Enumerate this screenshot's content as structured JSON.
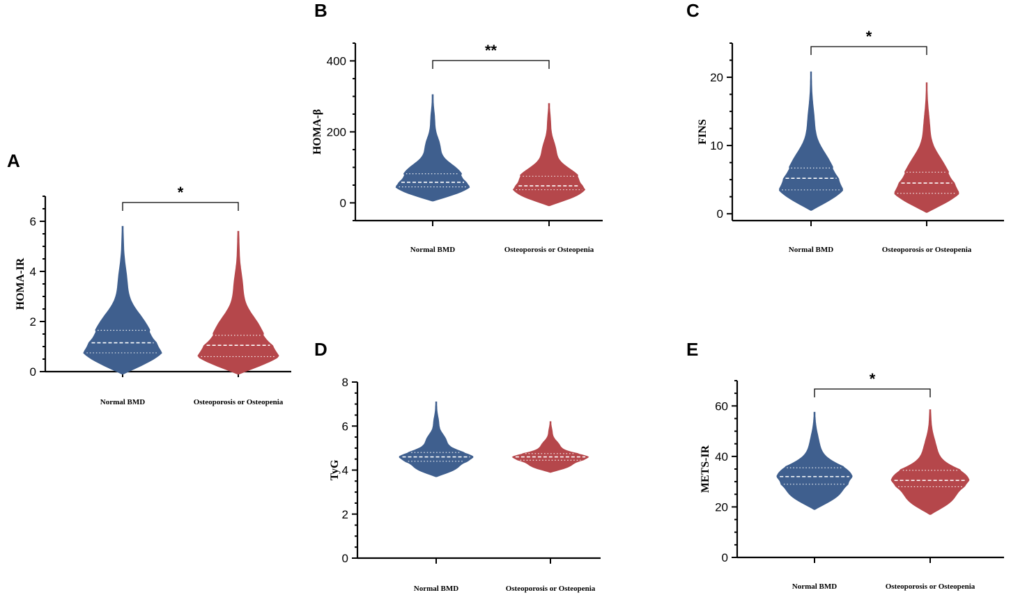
{
  "chart_data": [
    {
      "panel": "A",
      "type": "violin",
      "ylabel": "HOMA-IR",
      "ylim": [
        0,
        7
      ],
      "yticks": [
        0,
        2,
        4,
        6
      ],
      "categories": [
        "Normal BMD",
        "Osteoporosis or Osteopenia"
      ],
      "significance": "*",
      "series": [
        {
          "name": "Normal BMD",
          "color": "#3f5f8e",
          "min": -0.1,
          "q1": 0.75,
          "median": 1.15,
          "q3": 1.65,
          "max": 5.8
        },
        {
          "name": "Osteoporosis or Osteopenia",
          "color": "#b5474b",
          "min": -0.1,
          "q1": 0.6,
          "median": 1.05,
          "q3": 1.45,
          "max": 5.6
        }
      ]
    },
    {
      "panel": "B",
      "type": "violin",
      "ylabel": "HOMA-β",
      "ylim": [
        -50,
        450
      ],
      "yticks": [
        0,
        200,
        400
      ],
      "categories": [
        "Normal BMD",
        "Osteoporosis or Osteopenia"
      ],
      "significance": "**",
      "series": [
        {
          "name": "Normal BMD",
          "color": "#3f5f8e",
          "min": 5,
          "q1": 45,
          "median": 58,
          "q3": 82,
          "max": 305
        },
        {
          "name": "Osteoporosis or Osteopenia",
          "color": "#b5474b",
          "min": -8,
          "q1": 37,
          "median": 48,
          "q3": 75,
          "max": 280
        }
      ]
    },
    {
      "panel": "C",
      "type": "violin",
      "ylabel": "FINS",
      "ylim": [
        -1,
        25
      ],
      "yticks": [
        0,
        10,
        20
      ],
      "categories": [
        "Normal BMD",
        "Osteoporosis or Osteopenia"
      ],
      "significance": "*",
      "series": [
        {
          "name": "Normal BMD",
          "color": "#3f5f8e",
          "min": 0.5,
          "q1": 3.5,
          "median": 5.2,
          "q3": 6.7,
          "max": 20.8
        },
        {
          "name": "Osteoporosis or Osteopenia",
          "color": "#b5474b",
          "min": 0.2,
          "q1": 3.0,
          "median": 4.5,
          "q3": 6.1,
          "max": 19.2
        }
      ]
    },
    {
      "panel": "D",
      "type": "violin",
      "ylabel": "TyG",
      "ylim": [
        0,
        8
      ],
      "yticks": [
        0,
        2,
        4,
        6,
        8
      ],
      "categories": [
        "Normal BMD",
        "Osteoporosis or Osteopenia"
      ],
      "significance": "",
      "series": [
        {
          "name": "Normal BMD",
          "color": "#3f5f8e",
          "min": 3.7,
          "q1": 4.4,
          "median": 4.6,
          "q3": 4.8,
          "max": 7.1
        },
        {
          "name": "Osteoporosis or Osteopenia",
          "color": "#b5474b",
          "min": 3.9,
          "q1": 4.45,
          "median": 4.6,
          "q3": 4.75,
          "max": 6.2
        }
      ]
    },
    {
      "panel": "E",
      "type": "violin",
      "ylabel": "METS-IR",
      "ylim": [
        0,
        70
      ],
      "yticks": [
        0,
        20,
        40,
        60
      ],
      "categories": [
        "Normal BMD",
        "Osteoporosis or Osteopenia"
      ],
      "significance": "*",
      "series": [
        {
          "name": "Normal BMD",
          "color": "#3f5f8e",
          "min": 19,
          "q1": 29,
          "median": 32,
          "q3": 35.5,
          "max": 57.5
        },
        {
          "name": "Osteoporosis or Osteopenia",
          "color": "#b5474b",
          "min": 17,
          "q1": 28,
          "median": 30.5,
          "q3": 34.5,
          "max": 58.5
        }
      ]
    }
  ]
}
